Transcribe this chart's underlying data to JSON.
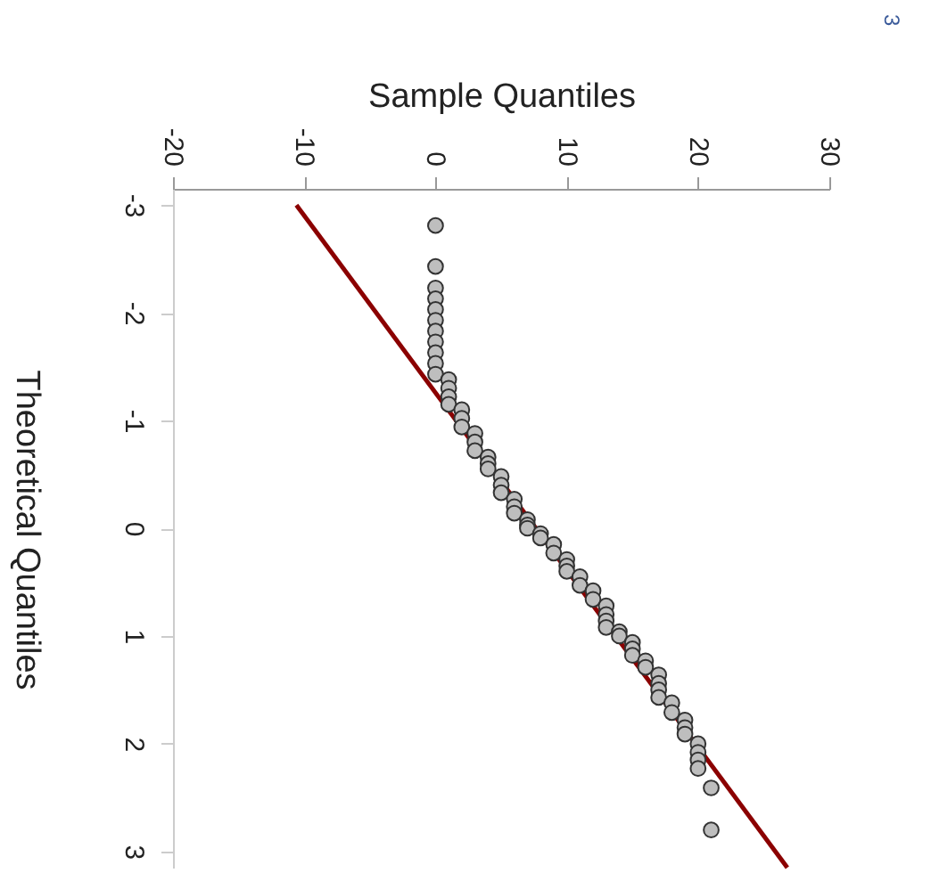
{
  "chart_data": {
    "type": "scatter",
    "xlabel": "Sample Quantiles",
    "ylabel": "Theoretical Quantiles",
    "annotations": [
      "3"
    ],
    "xlim": [
      -20,
      30
    ],
    "xticks": [
      -20,
      -10,
      0,
      10,
      20,
      30
    ],
    "ylim": [
      3.15,
      -3.15
    ],
    "yticks": [
      -3,
      -2,
      -1,
      0,
      1,
      2,
      3
    ],
    "grid": false,
    "series": [
      {
        "type": "scatter",
        "marker": "circle",
        "color": "#bebebe",
        "x": [
          0,
          0,
          0,
          0,
          0,
          0,
          0,
          0,
          0,
          0,
          0,
          1,
          1,
          1,
          1,
          2,
          2,
          2,
          3,
          3,
          3,
          4,
          4,
          4,
          5,
          5,
          5,
          6,
          6,
          6,
          7,
          7,
          7,
          8,
          8,
          9,
          9,
          10,
          10,
          10,
          11,
          11,
          12,
          12,
          13,
          13,
          13,
          13,
          14,
          14,
          15,
          15,
          15,
          16,
          16,
          17,
          17,
          17,
          17,
          18,
          18,
          19,
          19,
          19,
          20,
          20,
          20,
          20,
          21,
          21
        ],
        "values": [
          -2.81,
          -2.43,
          -2.23,
          -2.13,
          -2.03,
          -1.93,
          -1.83,
          -1.73,
          -1.63,
          -1.53,
          -1.43,
          -1.38,
          -1.3,
          -1.22,
          -1.15,
          -1.1,
          -1.02,
          -0.94,
          -0.88,
          -0.8,
          -0.72,
          -0.66,
          -0.6,
          -0.55,
          -0.48,
          -0.4,
          -0.33,
          -0.27,
          -0.2,
          -0.14,
          -0.08,
          -0.03,
          0,
          0.05,
          0.09,
          0.15,
          0.23,
          0.29,
          0.35,
          0.4,
          0.45,
          0.53,
          0.58,
          0.66,
          0.72,
          0.8,
          0.86,
          0.92,
          0.96,
          1,
          1.06,
          1.12,
          1.18,
          1.23,
          1.29,
          1.36,
          1.44,
          1.5,
          1.57,
          1.62,
          1.71,
          1.78,
          1.85,
          1.91,
          2,
          2.08,
          2.15,
          2.23,
          2.41,
          2.8
        ]
      },
      {
        "type": "line",
        "color": "#8b0000",
        "x": [
          -10.6,
          26.8
        ],
        "values": [
          -3.0,
          3.15
        ]
      }
    ]
  }
}
